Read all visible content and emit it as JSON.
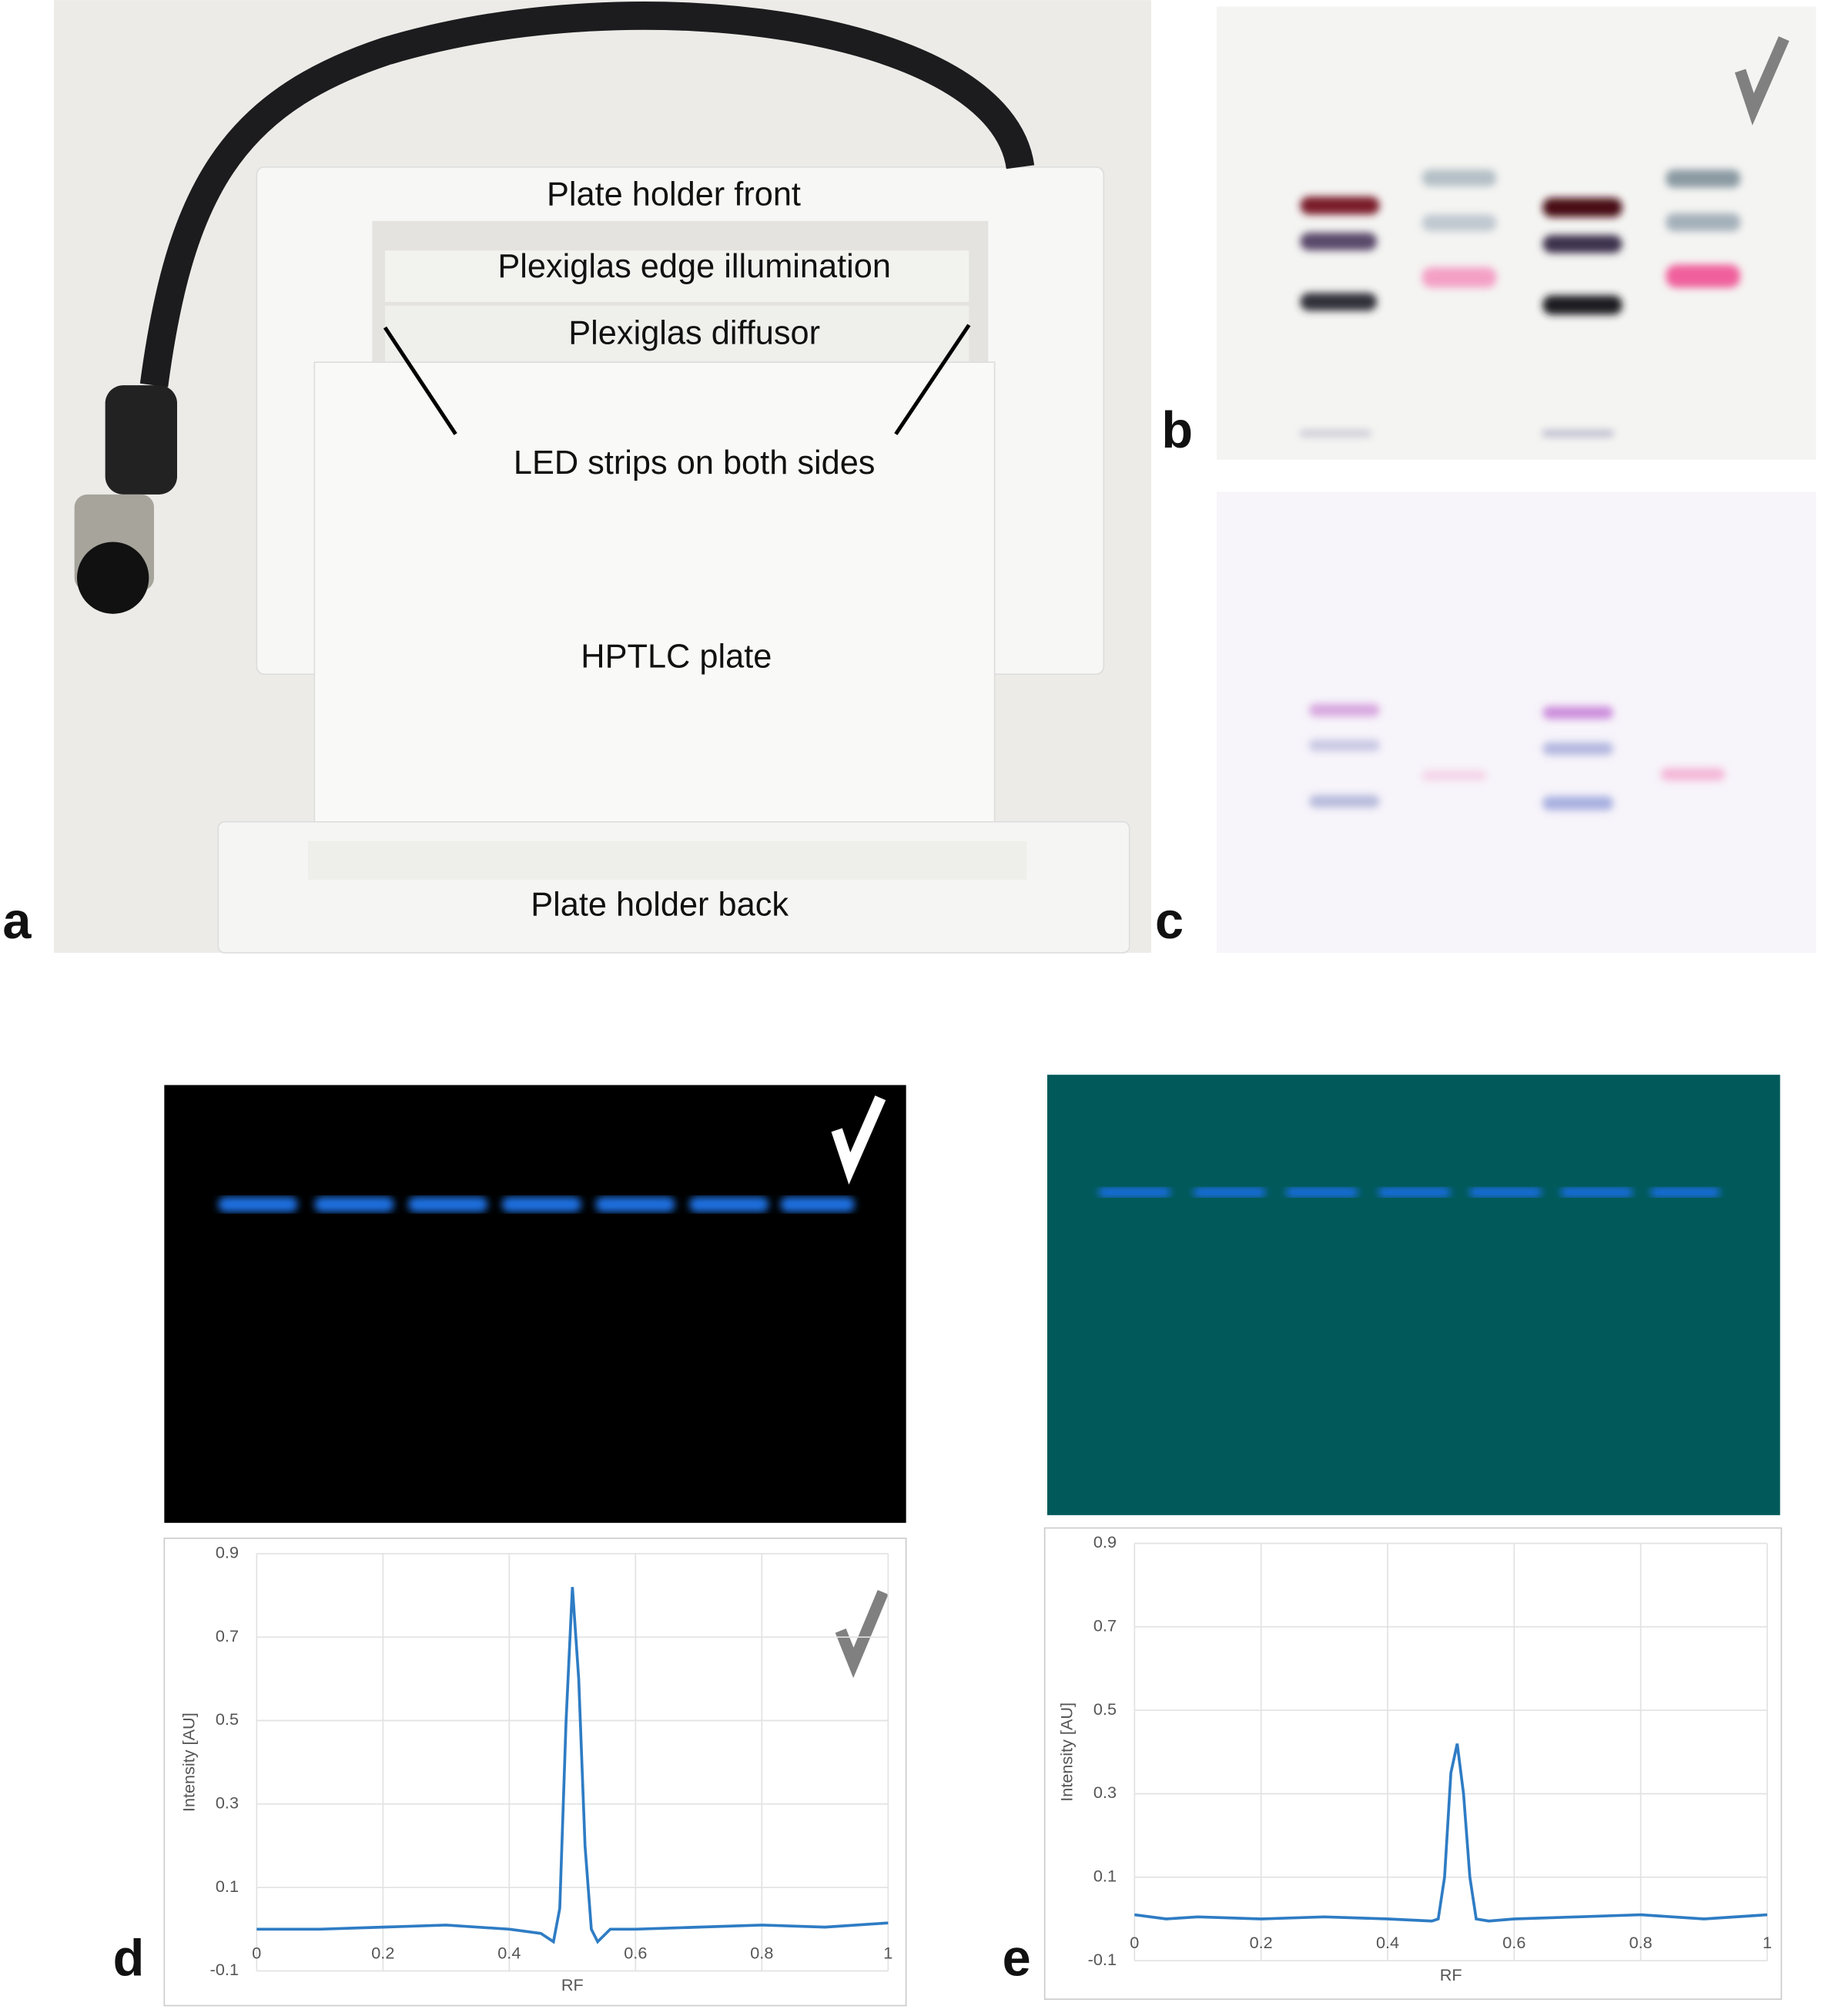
{
  "panel_letters": [
    "a",
    "b",
    "c",
    "d",
    "e"
  ],
  "photo_labels": [
    "Plate holder front",
    "Plexiglas edge illumination",
    "Plexiglas diffusor",
    "LED strips on both sides",
    "HPTLC plate",
    "Plate holder back"
  ],
  "chart_data": [
    {
      "type": "line",
      "x_label": "RF",
      "y_label": "Intensity [AU]",
      "x": [
        0,
        0.1,
        0.2,
        0.3,
        0.4,
        0.45,
        0.47,
        0.48,
        0.49,
        0.5,
        0.51,
        0.52,
        0.53,
        0.54,
        0.56,
        0.6,
        0.7,
        0.8,
        0.9,
        1
      ],
      "values": [
        0.0,
        0.0,
        0.005,
        0.01,
        0.0,
        -0.01,
        -0.03,
        0.05,
        0.5,
        0.82,
        0.6,
        0.2,
        0.0,
        -0.03,
        0.0,
        0.0,
        0.005,
        0.01,
        0.005,
        0.015
      ],
      "color": "#2e7cc4",
      "xlim": [
        0,
        1
      ],
      "ylim": [
        -0.1,
        0.9
      ],
      "xticks": [
        0,
        0.2,
        0.4,
        0.6,
        0.8,
        1
      ],
      "yticks": [
        -0.1,
        0.1,
        0.3,
        0.5,
        0.7,
        0.9
      ],
      "grid": true
    },
    {
      "type": "line",
      "x_label": "RF",
      "y_label": "Intensity [AU]",
      "x": [
        0,
        0.05,
        0.1,
        0.2,
        0.3,
        0.4,
        0.47,
        0.48,
        0.49,
        0.5,
        0.51,
        0.52,
        0.53,
        0.54,
        0.56,
        0.6,
        0.7,
        0.8,
        0.9,
        1
      ],
      "values": [
        0.01,
        0.0,
        0.005,
        0.0,
        0.005,
        0.0,
        -0.005,
        0.0,
        0.1,
        0.35,
        0.42,
        0.3,
        0.1,
        0.0,
        -0.005,
        0.0,
        0.005,
        0.01,
        0.0,
        0.01
      ],
      "color": "#2e7cc4",
      "xlim": [
        0,
        1
      ],
      "ylim": [
        -0.1,
        0.9
      ],
      "xticks": [
        0,
        0.2,
        0.4,
        0.6,
        0.8,
        1
      ],
      "yticks": [
        -0.1,
        0.1,
        0.3,
        0.5,
        0.7,
        0.9
      ],
      "grid": true
    }
  ]
}
